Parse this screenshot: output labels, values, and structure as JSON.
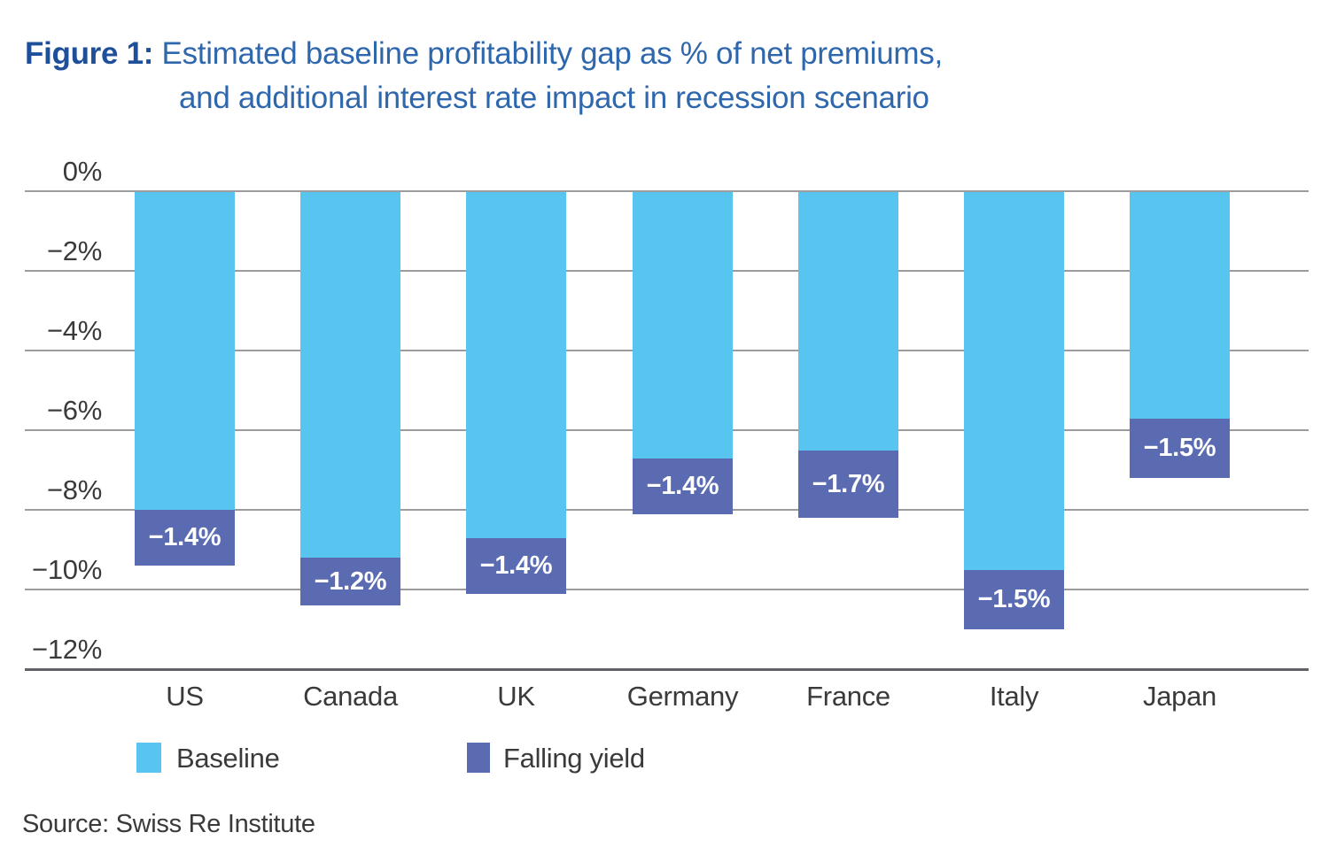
{
  "title": {
    "figure_label": "Figure 1:",
    "line1": "Estimated baseline profitability gap as % of net premiums,",
    "line2": "and additional interest rate impact in recession scenario"
  },
  "source": "Source: Swiss Re Institute",
  "chart_data": {
    "type": "bar",
    "stacked": true,
    "orientation": "vertical",
    "title": "Figure 1: Estimated baseline profitability gap as % of net premiums, and additional interest rate impact in recession scenario",
    "source": "Source: Swiss Re Institute",
    "categories": [
      "US",
      "Canada",
      "UK",
      "Germany",
      "France",
      "Italy",
      "Japan"
    ],
    "series": [
      {
        "name": "Baseline",
        "color": "#57c5f0",
        "values": [
          -8.0,
          -9.2,
          -8.7,
          -6.7,
          -6.5,
          -9.5,
          -5.7
        ]
      },
      {
        "name": "Falling yield",
        "color": "#5a6bb2",
        "values": [
          -1.4,
          -1.2,
          -1.4,
          -1.4,
          -1.7,
          -1.5,
          -1.5
        ],
        "data_labels": [
          "−1.4%",
          "−1.2%",
          "−1.4%",
          "−1.4%",
          "−1.7%",
          "−1.5%",
          "−1.5%"
        ]
      }
    ],
    "totals": [
      -9.4,
      -10.4,
      -10.1,
      -8.1,
      -8.2,
      -11.0,
      -7.2
    ],
    "yticks": [
      {
        "label": "0%",
        "value": 0
      },
      {
        "label": "−2%",
        "value": -2
      },
      {
        "label": "−4%",
        "value": -4
      },
      {
        "label": "−6%",
        "value": -6
      },
      {
        "label": "−8%",
        "value": -8
      },
      {
        "label": "−10%",
        "value": -10
      },
      {
        "label": "−12%",
        "value": -12
      }
    ],
    "ylim": [
      0,
      -12
    ],
    "grid": "horizontal",
    "legend_position": "bottom",
    "colors": {
      "grid": "#9c9c9e",
      "axis": "#626266",
      "tick_text": "#3a3a3c",
      "bar_label_text": "#ffffff",
      "title_figure": "#1d4f9b",
      "title_text": "#2f67ad"
    }
  }
}
